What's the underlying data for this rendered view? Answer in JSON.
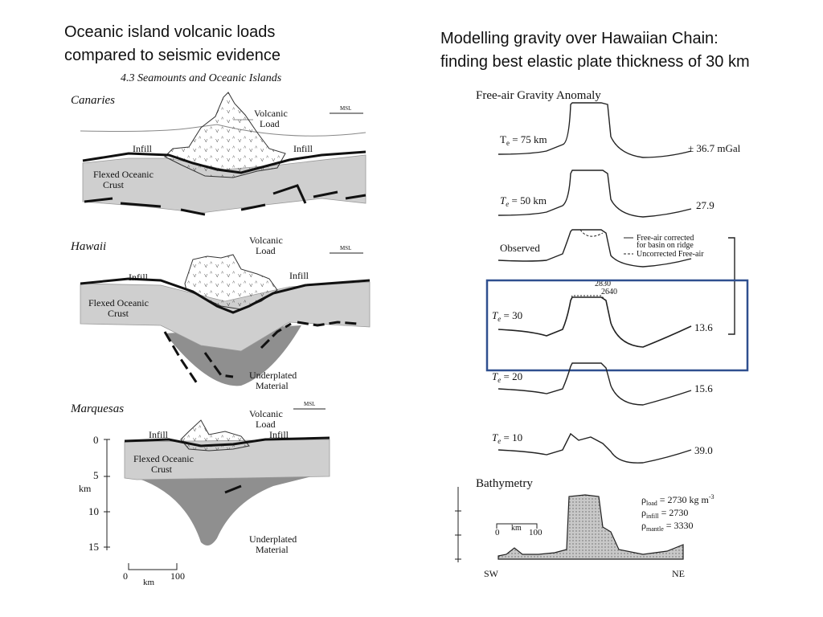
{
  "left_title": {
    "line1": "Oceanic island volcanic loads",
    "line2": "compared to seismic evidence"
  },
  "right_title": {
    "line1": "Modelling gravity over Hawaiian Chain:",
    "line2": "finding best elastic plate thickness of 30 km"
  },
  "left_figure": {
    "header": "4.3 Seamounts and Oceanic Islands",
    "panels": [
      {
        "name": "Canaries",
        "msl": "MSL",
        "volcanic_load": [
          "Volcanic",
          "Load"
        ],
        "infill_left": "Infill",
        "infill_right": "Infill",
        "crust": [
          "Flexed Oceanic",
          "Crust"
        ]
      },
      {
        "name": "Hawaii",
        "msl": "MSL",
        "volcanic_load": [
          "Volcanic",
          "Load"
        ],
        "infill_left": "Infill",
        "infill_right": "Infill",
        "crust": [
          "Flexed Oceanic",
          "Crust"
        ],
        "underplated": [
          "Underplated",
          "Material"
        ]
      },
      {
        "name": "Marquesas",
        "msl": "MSL",
        "volcanic_load": [
          "Volcanic",
          "Load"
        ],
        "infill_left": "Infill",
        "infill_right": "Infill",
        "crust": [
          "Flexed Oceanic",
          "Crust"
        ],
        "underplated": [
          "Underplated",
          "Material"
        ]
      }
    ],
    "depth_axis": {
      "ticks": [
        "0",
        "5",
        "10",
        "15"
      ],
      "unit": "km"
    },
    "scale_bar": {
      "start": "0",
      "end": "100",
      "unit": "km"
    }
  },
  "right_figure": {
    "header": "Free-air Gravity Anomaly",
    "profiles": [
      {
        "label_te": "T",
        "label_sub": "e",
        "label_rest": " = 75 km",
        "value": "± 36.7 mGal"
      },
      {
        "label_te": "T",
        "label_sub": "e",
        "label_rest": " = 50 km",
        "value": "27.9"
      },
      {
        "label": "Observed",
        "legend": [
          "Free-air corrected",
          "for basin on ridge",
          "Uncorrected Free-air"
        ]
      },
      {
        "label_te": "T",
        "label_sub": "e",
        "label_rest": " = 30",
        "value": "13.6",
        "annotations": [
          "2830",
          "2640"
        ]
      },
      {
        "label_te": "T",
        "label_sub": "e",
        "label_rest": " = 20",
        "value": "15.6"
      },
      {
        "label_te": "T",
        "label_sub": "e",
        "label_rest": " = 10",
        "value": "39.0"
      }
    ],
    "bathymetry": {
      "header": "Bathymetry",
      "densities": [
        {
          "sym": "ρ",
          "sub": "load",
          "val": " = 2730 kg m",
          "sup": "-3"
        },
        {
          "sym": "ρ",
          "sub": "infill",
          "val": " = 2730"
        },
        {
          "sym": "ρ",
          "sub": "mantle",
          "val": " = 3330"
        }
      ],
      "scale": {
        "start": "0",
        "unit": "km",
        "end": "100"
      },
      "sw": "SW",
      "ne": "NE"
    },
    "highlight_color": "#2f4f8f"
  }
}
